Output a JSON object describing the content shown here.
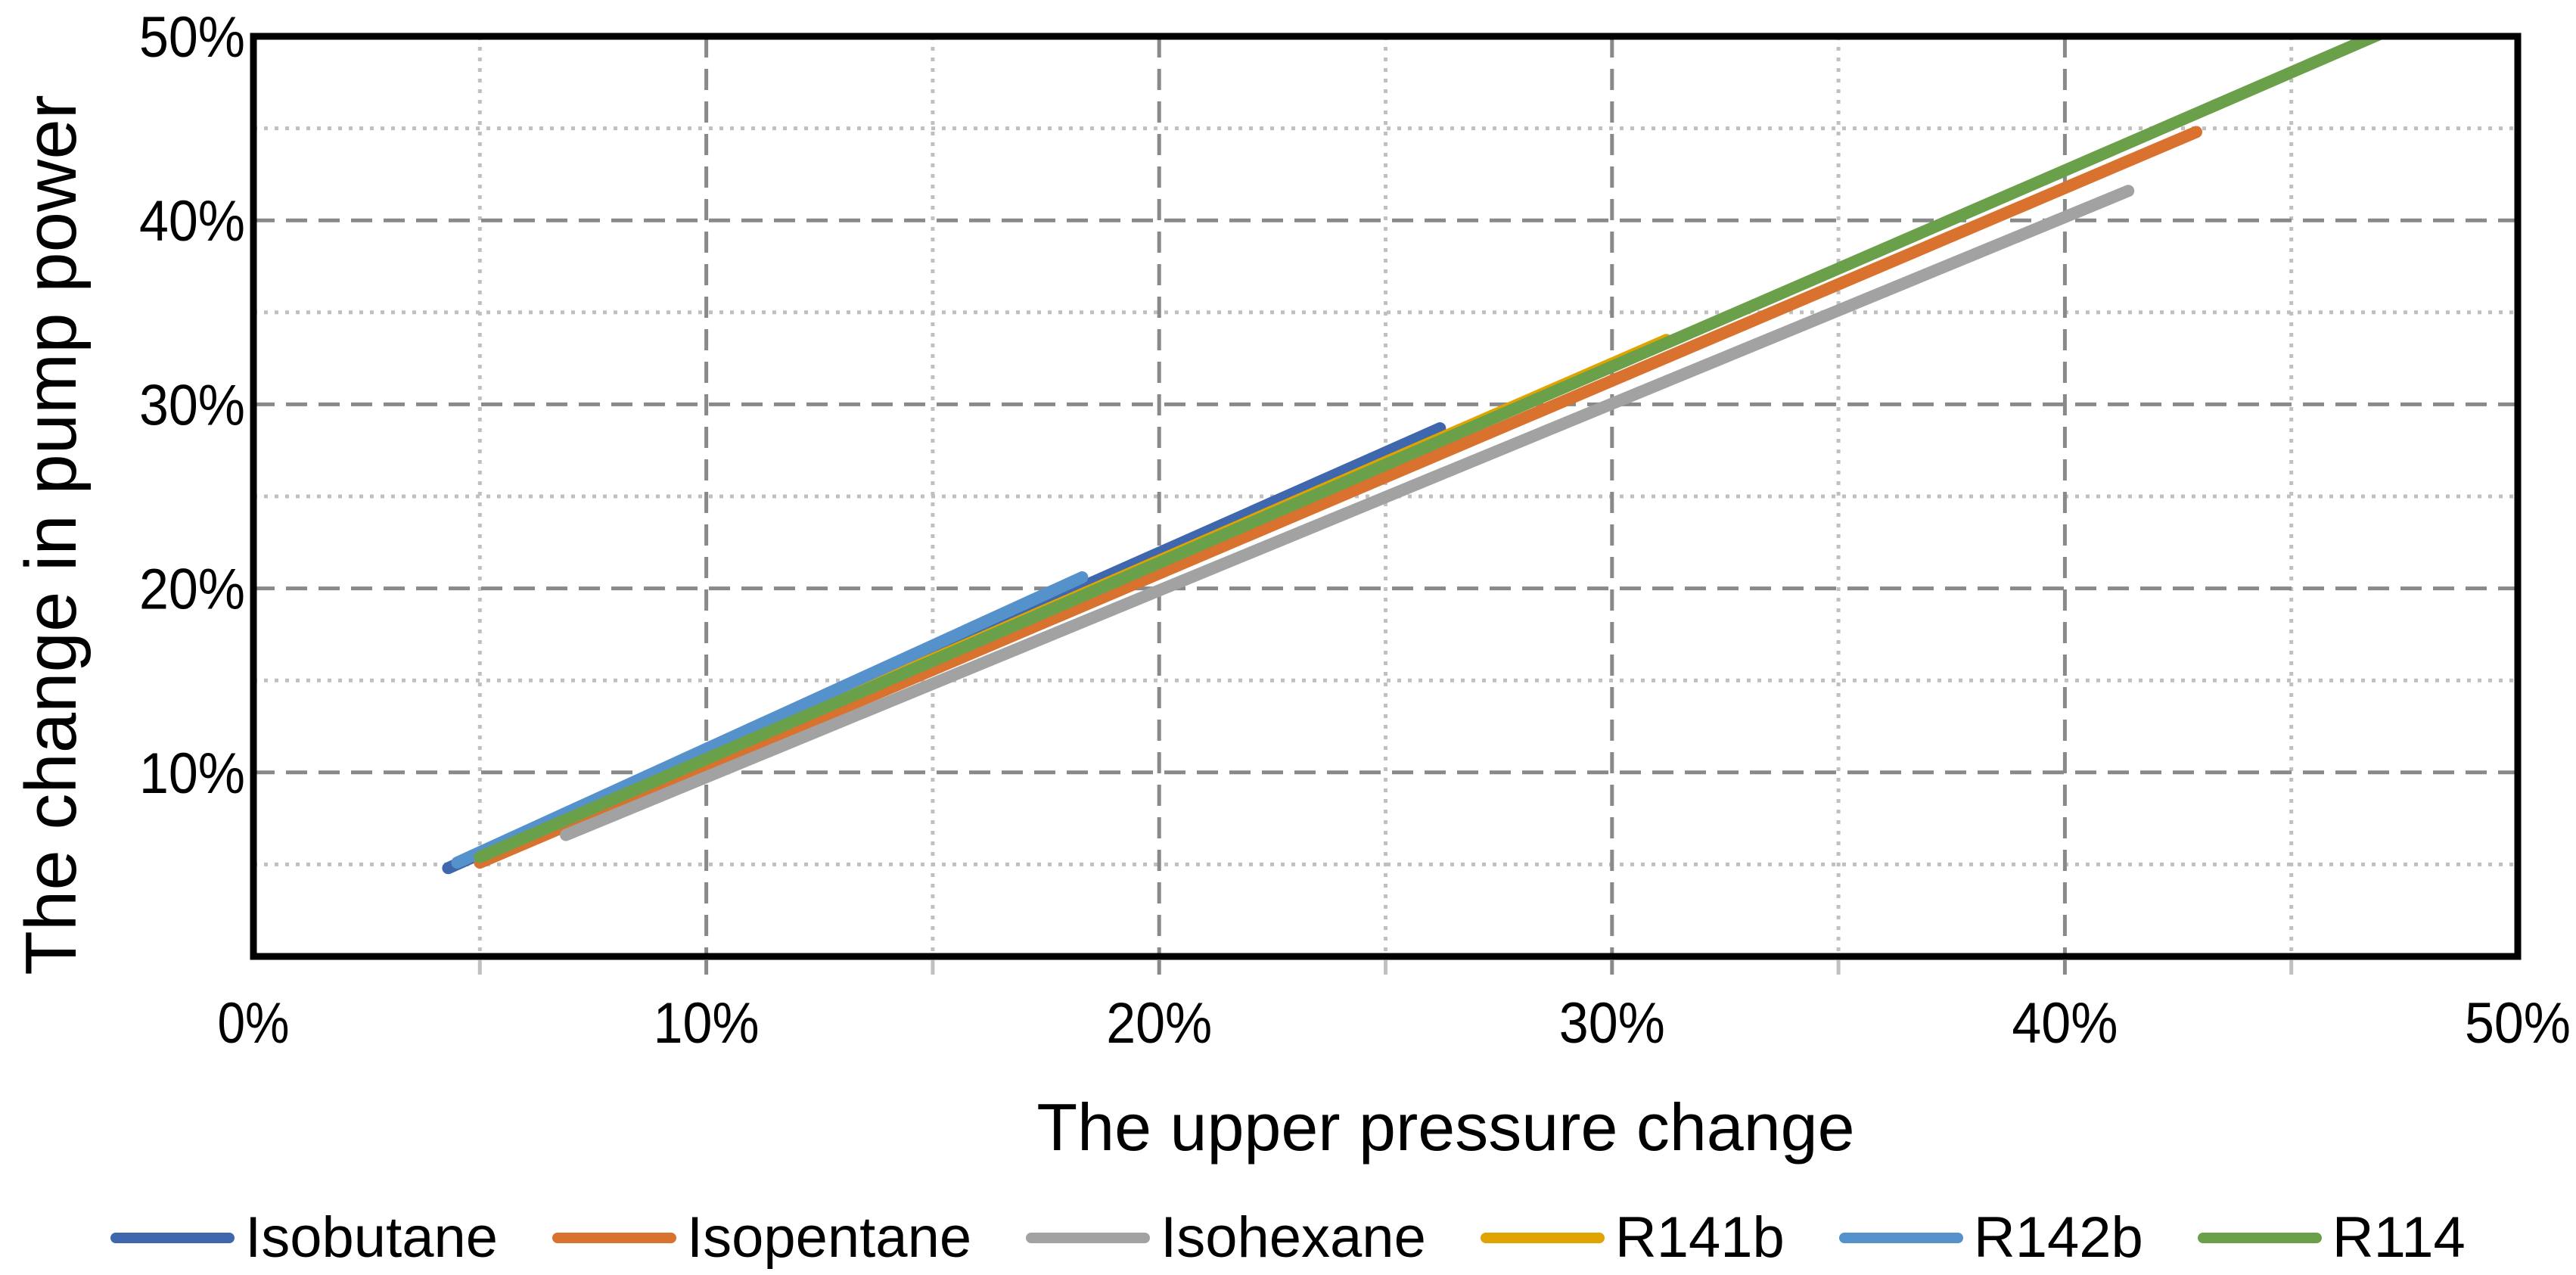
{
  "chart_data": {
    "type": "line",
    "title": "",
    "xlabel": "The upper pressure change",
    "ylabel": "The change in pump power",
    "units": "percent",
    "xlim": [
      0,
      50
    ],
    "ylim": [
      0,
      50
    ],
    "x_ticks": [
      {
        "label": "0%",
        "value": 0
      },
      {
        "label": "10%",
        "value": 10
      },
      {
        "label": "20%",
        "value": 20
      },
      {
        "label": "30%",
        "value": 30
      },
      {
        "label": "40%",
        "value": 40
      },
      {
        "label": "50%",
        "value": 50
      }
    ],
    "y_ticks": [
      {
        "label": "10%",
        "value": 10
      },
      {
        "label": "20%",
        "value": 20
      },
      {
        "label": "30%",
        "value": 30
      },
      {
        "label": "40%",
        "value": 40
      },
      {
        "label": "50%",
        "value": 50
      }
    ],
    "grid": {
      "x_minor": [
        5,
        15,
        25,
        35,
        45
      ],
      "x_major": [
        10,
        20,
        30,
        40
      ],
      "y_minor": [
        5,
        15,
        25,
        35,
        45
      ],
      "y_major": [
        10,
        20,
        30,
        40
      ],
      "major_color": "#898989",
      "minor_color": "#C0C0C0",
      "major_style": "dashed",
      "minor_style": "dotted"
    },
    "axis_color": "#000000",
    "legend_position": "bottom",
    "series": [
      {
        "name": "Isobutane",
        "color": "#3E67AE",
        "points": [
          [
            4.3,
            4.8
          ],
          [
            26.2,
            28.7
          ]
        ]
      },
      {
        "name": "Isopentane",
        "color": "#D9722E",
        "points": [
          [
            5.0,
            5.1
          ],
          [
            42.9,
            44.8
          ]
        ]
      },
      {
        "name": "Isohexane",
        "color": "#A2A2A2",
        "points": [
          [
            6.9,
            6.6
          ],
          [
            41.4,
            41.6
          ]
        ]
      },
      {
        "name": "R141b",
        "color": "#E0A400",
        "points": [
          [
            5.0,
            5.45
          ],
          [
            31.2,
            33.5
          ]
        ]
      },
      {
        "name": "R142b",
        "color": "#5591CB",
        "points": [
          [
            4.5,
            5.1
          ],
          [
            18.3,
            20.6
          ]
        ]
      },
      {
        "name": "R114",
        "color": "#6BA04A",
        "points": [
          [
            5.0,
            5.4
          ],
          [
            47.4,
            50.6
          ]
        ]
      }
    ]
  }
}
